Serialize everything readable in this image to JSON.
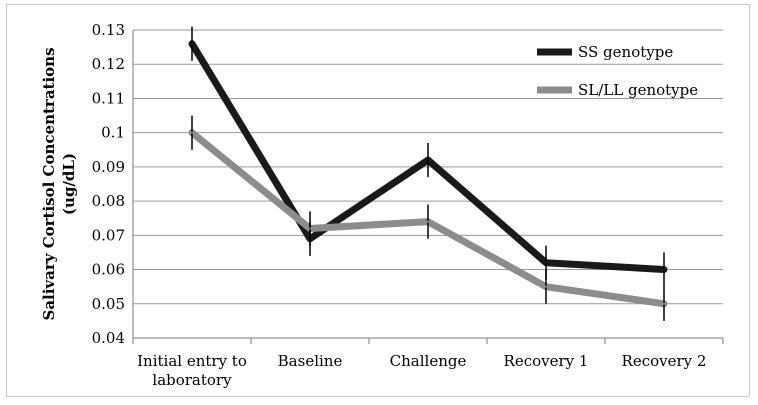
{
  "chart_data": {
    "type": "line",
    "title": "",
    "xlabel": "",
    "ylabel_lines": [
      "Salivary Cortisol Concentrations",
      "(ug/dL)"
    ],
    "categories": [
      [
        "Initial entry to",
        "laboratory"
      ],
      [
        "Baseline"
      ],
      [
        "Challenge"
      ],
      [
        "Recovery 1"
      ],
      [
        "Recovery 2"
      ]
    ],
    "ylim": [
      0.04,
      0.13
    ],
    "yticks": [
      "0.04",
      "0.05",
      "0.06",
      "0.07",
      "0.08",
      "0.09",
      "0.1",
      "0.11",
      "0.12",
      "0.13"
    ],
    "grid": true,
    "legend_position": "top-right",
    "series": [
      {
        "name": "SS genotype",
        "color": "#1a1a1a",
        "values": [
          0.126,
          0.069,
          0.092,
          0.062,
          0.06
        ],
        "error": [
          0.005,
          0.005,
          0.005,
          0.005,
          0.005
        ]
      },
      {
        "name": "SL/LL genotype",
        "color": "#8c8c8c",
        "values": [
          0.1,
          0.072,
          0.074,
          0.055,
          0.05
        ],
        "error": [
          0.005,
          0.005,
          0.005,
          0.005,
          0.005
        ]
      }
    ]
  }
}
